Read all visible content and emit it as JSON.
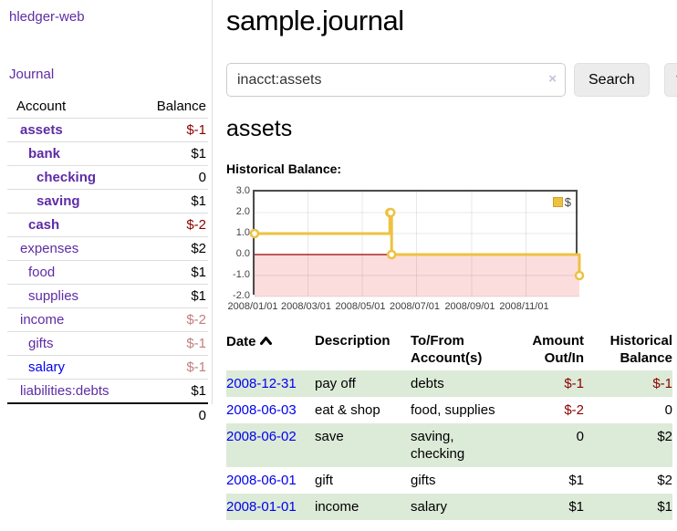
{
  "app": {
    "brand": "hledger-web"
  },
  "sidebar": {
    "nav_journal": "Journal",
    "account_header": "Account",
    "balance_header": "Balance",
    "accounts": [
      {
        "name": "assets",
        "balance": "$-1"
      },
      {
        "name": "bank",
        "balance": "$1"
      },
      {
        "name": "checking",
        "balance": "0"
      },
      {
        "name": "saving",
        "balance": "$1"
      },
      {
        "name": "cash",
        "balance": "$-2"
      },
      {
        "name": "expenses",
        "balance": "$2"
      },
      {
        "name": "food",
        "balance": "$1"
      },
      {
        "name": "supplies",
        "balance": "$1"
      },
      {
        "name": "income",
        "balance": "$-2"
      },
      {
        "name": "gifts",
        "balance": "$-1"
      },
      {
        "name": "salary",
        "balance": "$-1"
      },
      {
        "name": "liabilities:debts",
        "balance": "$1"
      }
    ],
    "total": "0"
  },
  "header": {
    "title": "sample.journal"
  },
  "search": {
    "value": "inacct:assets",
    "clear_icon": "×",
    "button_label": "Search",
    "help_label": "?"
  },
  "account_page": {
    "title": "assets",
    "chart_label": "Historical Balance:"
  },
  "chart_data": {
    "type": "line",
    "step": true,
    "title": "Historical Balance",
    "x": [
      "2008-01-01",
      "2008-06-01",
      "2008-06-02",
      "2008-06-03",
      "2008-12-31"
    ],
    "series": [
      {
        "name": "$",
        "values": [
          1,
          2,
          2,
          0,
          -1
        ],
        "color": "#edc240"
      }
    ],
    "x_ticks": [
      "2008/01/01",
      "2008/03/01",
      "2008/05/01",
      "2008/07/01",
      "2008/09/01",
      "2008/11/01"
    ],
    "y_ticks": [
      "3.0",
      "2.0",
      "1.0",
      "0.0",
      "-1.0",
      "-2.0"
    ],
    "xlim": [
      "2008-01-01",
      "2008-12-31"
    ],
    "ylim": [
      -2,
      3
    ],
    "grid": true,
    "legend": {
      "label": "$",
      "position": "top-right",
      "swatch_color": "#edc240"
    },
    "negative_region_fill": "#fcdddd",
    "zero_line_color": "#a00000"
  },
  "register": {
    "columns": {
      "date": "Date",
      "description": "Description",
      "accounts": "To/From\nAccount(s)",
      "amount": "Amount\nOut/In",
      "balance": "Historical\nBalance"
    },
    "rows": [
      {
        "date": "2008-12-31",
        "description": "pay off",
        "accounts": "debts",
        "amount": "$-1",
        "balance": "$-1"
      },
      {
        "date": "2008-06-03",
        "description": "eat & shop",
        "accounts": "food, supplies",
        "amount": "$-2",
        "balance": "0"
      },
      {
        "date": "2008-06-02",
        "description": "save",
        "accounts": "saving,\nchecking",
        "amount": "0",
        "balance": "$2"
      },
      {
        "date": "2008-06-01",
        "description": "gift",
        "accounts": "gifts",
        "amount": "$1",
        "balance": "$2"
      },
      {
        "date": "2008-01-01",
        "description": "income",
        "accounts": "salary",
        "amount": "$1",
        "balance": "$1"
      }
    ]
  },
  "colors": {
    "link_purple": "#5e2ca5",
    "link_blue": "#0000ee",
    "negative_strong": "#8b0000",
    "negative_faded": "#c07f80",
    "row_stripe_green": "#dcead8",
    "series_yellow": "#edc240"
  }
}
